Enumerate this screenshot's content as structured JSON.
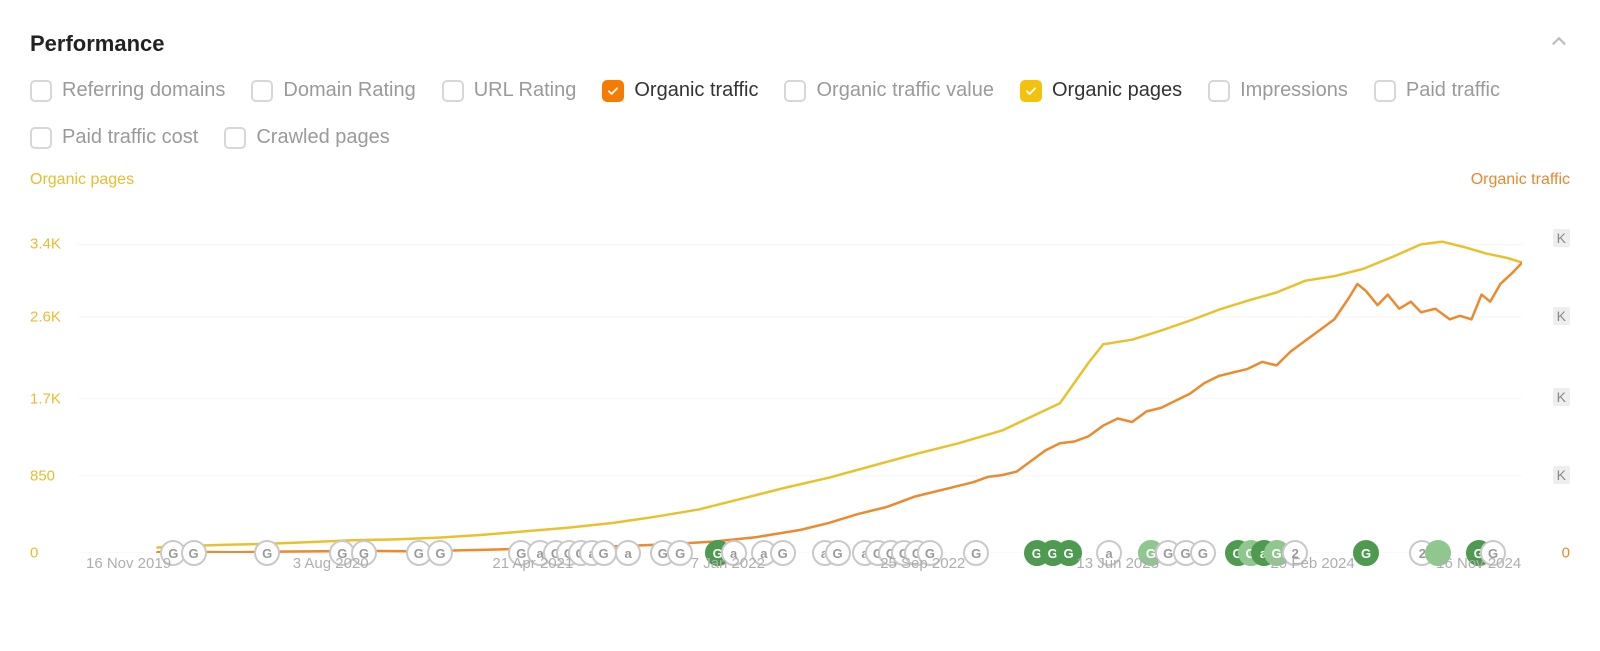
{
  "panel": {
    "title": "Performance",
    "collapse_icon_color": "#bdbdbd"
  },
  "filters": [
    {
      "key": "referring_domains",
      "label": "Referring domains",
      "checked": false
    },
    {
      "key": "domain_rating",
      "label": "Domain Rating",
      "checked": false
    },
    {
      "key": "url_rating",
      "label": "URL Rating",
      "checked": false
    },
    {
      "key": "organic_traffic",
      "label": "Organic traffic",
      "checked": true,
      "color": "#f57c00"
    },
    {
      "key": "organic_traffic_value",
      "label": "Organic traffic value",
      "checked": false
    },
    {
      "key": "organic_pages",
      "label": "Organic pages",
      "checked": true,
      "color": "#f4c20d"
    },
    {
      "key": "impressions",
      "label": "Impressions",
      "checked": false
    },
    {
      "key": "paid_traffic",
      "label": "Paid traffic",
      "checked": false
    },
    {
      "key": "paid_traffic_cost",
      "label": "Paid traffic cost",
      "checked": false
    },
    {
      "key": "crawled_pages",
      "label": "Crawled pages",
      "checked": false
    }
  ],
  "chart": {
    "background_color": "#ffffff",
    "grid_color": "#f2f2f2",
    "left_axis": {
      "title": "Organic pages",
      "title_color": "#e8bd2f",
      "tick_color": "#e8bd2f",
      "zero_color": "#e8bd2f",
      "ticks": [
        {
          "v": 0,
          "label": "0"
        },
        {
          "v": 850,
          "label": "850"
        },
        {
          "v": 1700,
          "label": "1.7K"
        },
        {
          "v": 2600,
          "label": "2.6K"
        },
        {
          "v": 3400,
          "label": "3.4K"
        }
      ],
      "max": 3900
    },
    "right_axis": {
      "title": "Organic traffic",
      "title_color": "#e58a2e",
      "tick_color": "#e58a2e",
      "zero_color": "#e58a2e",
      "ticks": [
        {
          "v": 0,
          "label": "0"
        },
        {
          "v": 22,
          "label": "K"
        },
        {
          "v": 44,
          "label": "K"
        },
        {
          "v": 67,
          "label": "K"
        },
        {
          "v": 89,
          "label": "K"
        }
      ],
      "max": 100
    },
    "x_axis": {
      "min": 0,
      "max": 100,
      "labels": [
        {
          "x": 3.5,
          "text": "16 Nov 2019"
        },
        {
          "x": 17.5,
          "text": "3 Aug 2020"
        },
        {
          "x": 31.5,
          "text": "21 Apr 2021"
        },
        {
          "x": 45,
          "text": "7 Jan 2022"
        },
        {
          "x": 58.5,
          "text": "25 Sep 2022"
        },
        {
          "x": 72,
          "text": "13 Jun 2023"
        },
        {
          "x": 85.5,
          "text": "29 Feb 2024"
        },
        {
          "x": 97,
          "text": "16 Nov 2024"
        }
      ],
      "label_color": "#aeaeae"
    },
    "series": [
      {
        "name": "Organic pages",
        "axis": "left",
        "color": "#e8c22e",
        "stroke_width": 2.5,
        "points": [
          [
            5.5,
            60
          ],
          [
            7,
            75
          ],
          [
            10,
            90
          ],
          [
            13,
            100
          ],
          [
            16,
            120
          ],
          [
            19,
            140
          ],
          [
            22,
            150
          ],
          [
            25,
            170
          ],
          [
            28,
            200
          ],
          [
            31,
            240
          ],
          [
            34,
            280
          ],
          [
            37,
            330
          ],
          [
            40,
            400
          ],
          [
            43,
            480
          ],
          [
            46,
            600
          ],
          [
            49,
            720
          ],
          [
            52,
            830
          ],
          [
            55,
            960
          ],
          [
            58,
            1090
          ],
          [
            61,
            1210
          ],
          [
            64,
            1350
          ],
          [
            66,
            1500
          ],
          [
            68,
            1650
          ],
          [
            70,
            2100
          ],
          [
            71,
            2300
          ],
          [
            73,
            2350
          ],
          [
            75,
            2450
          ],
          [
            77,
            2560
          ],
          [
            79,
            2680
          ],
          [
            81,
            2780
          ],
          [
            83,
            2870
          ],
          [
            85,
            3000
          ],
          [
            87,
            3050
          ],
          [
            89,
            3130
          ],
          [
            91,
            3260
          ],
          [
            93,
            3400
          ],
          [
            94.5,
            3430
          ],
          [
            96,
            3370
          ],
          [
            97.5,
            3300
          ],
          [
            99,
            3250
          ],
          [
            100,
            3200
          ]
        ]
      },
      {
        "name": "Organic traffic",
        "axis": "right",
        "color": "#eb8a2f",
        "stroke_width": 2.5,
        "points": [
          [
            5.5,
            0.2
          ],
          [
            8,
            0.3
          ],
          [
            11,
            0.2
          ],
          [
            14,
            0.4
          ],
          [
            17,
            0.5
          ],
          [
            20,
            0.6
          ],
          [
            23,
            0.5
          ],
          [
            26,
            0.7
          ],
          [
            29,
            1.0
          ],
          [
            32,
            1.3
          ],
          [
            35,
            1.6
          ],
          [
            38,
            2.0
          ],
          [
            41,
            2.5
          ],
          [
            44,
            3.2
          ],
          [
            47,
            4.5
          ],
          [
            50,
            6.5
          ],
          [
            52,
            8.5
          ],
          [
            54,
            11
          ],
          [
            56,
            13
          ],
          [
            58,
            16
          ],
          [
            60,
            18
          ],
          [
            62,
            20
          ],
          [
            63,
            21.5
          ],
          [
            64,
            22
          ],
          [
            65,
            23
          ],
          [
            66,
            26
          ],
          [
            67,
            29
          ],
          [
            68,
            31
          ],
          [
            69,
            31.5
          ],
          [
            70,
            33
          ],
          [
            71,
            36
          ],
          [
            72,
            38
          ],
          [
            73,
            37
          ],
          [
            74,
            40
          ],
          [
            75,
            41
          ],
          [
            76,
            43
          ],
          [
            77,
            45
          ],
          [
            78,
            48
          ],
          [
            79,
            50
          ],
          [
            80,
            51
          ],
          [
            81,
            52
          ],
          [
            82,
            54
          ],
          [
            83,
            53
          ],
          [
            84,
            57
          ],
          [
            85,
            60
          ],
          [
            86,
            63
          ],
          [
            87,
            66
          ],
          [
            88,
            72
          ],
          [
            88.6,
            76
          ],
          [
            89.2,
            74
          ],
          [
            90,
            70
          ],
          [
            90.7,
            73
          ],
          [
            91.5,
            69
          ],
          [
            92.3,
            71
          ],
          [
            93,
            68
          ],
          [
            94,
            69
          ],
          [
            95,
            66
          ],
          [
            95.7,
            67
          ],
          [
            96.5,
            66
          ],
          [
            97.2,
            73
          ],
          [
            97.8,
            71
          ],
          [
            98.5,
            76
          ],
          [
            99.3,
            79
          ],
          [
            100,
            82
          ]
        ]
      }
    ],
    "timeline_markers": {
      "baseline_y_pct": 100,
      "outline_default": {
        "fill": "#ffffff",
        "stroke": "#c9c9c9",
        "text": "#9a9a9a"
      },
      "green": {
        "fill": "#4f9a51",
        "stroke": "#4f9a51",
        "text": "#ffffff"
      },
      "light_green": {
        "fill": "#8fc78f",
        "stroke": "#8fc78f",
        "text": "#ffffff"
      },
      "markers": [
        {
          "x": 6.6,
          "style": "outline",
          "label": "G"
        },
        {
          "x": 8.0,
          "style": "outline",
          "label": "G"
        },
        {
          "x": 13.1,
          "style": "outline",
          "label": "G"
        },
        {
          "x": 18.3,
          "style": "outline",
          "label": "G"
        },
        {
          "x": 19.8,
          "style": "outline",
          "label": "G"
        },
        {
          "x": 23.6,
          "style": "outline",
          "label": "G"
        },
        {
          "x": 25.1,
          "style": "outline",
          "label": "G"
        },
        {
          "x": 30.7,
          "style": "outline",
          "label": "G"
        },
        {
          "x": 32.0,
          "style": "outline",
          "label": "a"
        },
        {
          "x": 33.1,
          "style": "outline",
          "label": "G"
        },
        {
          "x": 34.0,
          "style": "outline",
          "label": "G"
        },
        {
          "x": 34.8,
          "style": "outline",
          "label": "G"
        },
        {
          "x": 35.6,
          "style": "outline",
          "label": "a"
        },
        {
          "x": 36.4,
          "style": "outline",
          "label": "G"
        },
        {
          "x": 38.1,
          "style": "outline",
          "label": "a"
        },
        {
          "x": 40.5,
          "style": "outline",
          "label": "G"
        },
        {
          "x": 41.7,
          "style": "outline",
          "label": "G"
        },
        {
          "x": 44.3,
          "style": "green",
          "label": "G"
        },
        {
          "x": 45.4,
          "style": "outline",
          "label": "a"
        },
        {
          "x": 47.5,
          "style": "outline",
          "label": "a"
        },
        {
          "x": 48.8,
          "style": "outline",
          "label": "G"
        },
        {
          "x": 51.7,
          "style": "outline",
          "label": "a"
        },
        {
          "x": 52.6,
          "style": "outline",
          "label": "G"
        },
        {
          "x": 54.5,
          "style": "outline",
          "label": "a"
        },
        {
          "x": 55.4,
          "style": "outline",
          "label": "G"
        },
        {
          "x": 56.3,
          "style": "outline",
          "label": "G"
        },
        {
          "x": 57.2,
          "style": "outline",
          "label": "G"
        },
        {
          "x": 58.1,
          "style": "outline",
          "label": "G"
        },
        {
          "x": 59.0,
          "style": "outline",
          "label": "G"
        },
        {
          "x": 62.2,
          "style": "outline",
          "label": "G"
        },
        {
          "x": 66.4,
          "style": "green",
          "label": "G"
        },
        {
          "x": 67.5,
          "style": "green",
          "label": "G"
        },
        {
          "x": 68.6,
          "style": "green",
          "label": "G"
        },
        {
          "x": 71.4,
          "style": "outline",
          "label": "a"
        },
        {
          "x": 74.3,
          "style": "light_green",
          "label": "G"
        },
        {
          "x": 75.5,
          "style": "outline",
          "label": "G"
        },
        {
          "x": 76.7,
          "style": "outline",
          "label": "G"
        },
        {
          "x": 77.9,
          "style": "outline",
          "label": "G"
        },
        {
          "x": 80.3,
          "style": "green",
          "label": "G"
        },
        {
          "x": 81.2,
          "style": "light_green",
          "label": "G"
        },
        {
          "x": 82.1,
          "style": "green",
          "label": "a"
        },
        {
          "x": 83.0,
          "style": "light_green",
          "label": "G"
        },
        {
          "x": 84.3,
          "style": "outline",
          "label": "2"
        },
        {
          "x": 89.2,
          "style": "green",
          "label": "G"
        },
        {
          "x": 93.1,
          "style": "outline",
          "label": "2"
        },
        {
          "x": 94.2,
          "style": "light_green",
          "label": ""
        },
        {
          "x": 97.0,
          "style": "green",
          "label": "G"
        },
        {
          "x": 98.0,
          "style": "outline",
          "label": "G"
        }
      ]
    }
  }
}
